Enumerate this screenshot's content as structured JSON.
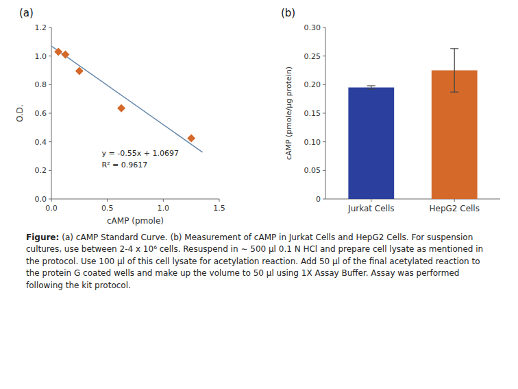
{
  "chart_data": [
    {
      "type": "scatter",
      "title": "(a)",
      "x_label": "cAMP (pmole)",
      "y_label": "O.D.",
      "xlim": [
        0,
        1.5
      ],
      "ylim": [
        0,
        1.2
      ],
      "xticks": [
        {
          "value": 0,
          "label": "0.0"
        },
        0.5,
        {
          "value": 1.0,
          "label": "1.0"
        },
        1.5
      ],
      "yticks": [
        {
          "value": 0,
          "label": "0.0"
        },
        0.2,
        0.4,
        0.6,
        0.8,
        {
          "value": 1.0,
          "label": "1.0"
        },
        1.2
      ],
      "series": [
        {
          "type": "scatter",
          "color": "#D4692A",
          "marker": "diamond",
          "x": [
            0.0625,
            0.125,
            0.25,
            0.625,
            1.25
          ],
          "values": [
            1.03,
            1.01,
            0.895,
            0.635,
            0.425
          ]
        },
        {
          "type": "line",
          "color": "#6688AA",
          "x": [
            0,
            1.35
          ],
          "values": [
            1.0697,
            0.3272
          ]
        }
      ],
      "annotations": [
        "y = -0.55x + 1.0697",
        "R² = 0.9617"
      ]
    },
    {
      "type": "bar",
      "title": "(b)",
      "y_label": "cAMP (pmole/μg protein)",
      "categories": [
        "Jurkat Cells",
        "HepG2 Cells"
      ],
      "values": [
        0.195,
        0.225
      ],
      "errors": [
        0.003,
        0.038
      ],
      "colors": [
        "#2B3F9E",
        "#D4692A"
      ],
      "ylim": [
        0,
        0.3
      ],
      "yticks": [
        0,
        0.05,
        {
          "value": 0.1,
          "label": "0.10"
        },
        0.15,
        {
          "value": 0.2,
          "label": "0.20"
        },
        0.25,
        {
          "value": 0.3,
          "label": "0.30"
        }
      ]
    }
  ],
  "caption": {
    "label": "Figure:",
    "text": "(a) cAMP Standard Curve. (b) Measurement of cAMP in Jurkat Cells and HepG2 Cells. For suspension cultures, use between 2-4 x 10⁶ cells. Resuspend in ∼ 500 μl 0.1 N HCl and prepare cell lysate as mentioned in the protocol. Use 100 μl of this cell lysate for acetylation reaction. Add 50 μl of the final acetylated reaction to the protein G coated wells and make up the volume to 50 μl using 1X Assay Buffer. Assay was performed following the kit protocol."
  }
}
